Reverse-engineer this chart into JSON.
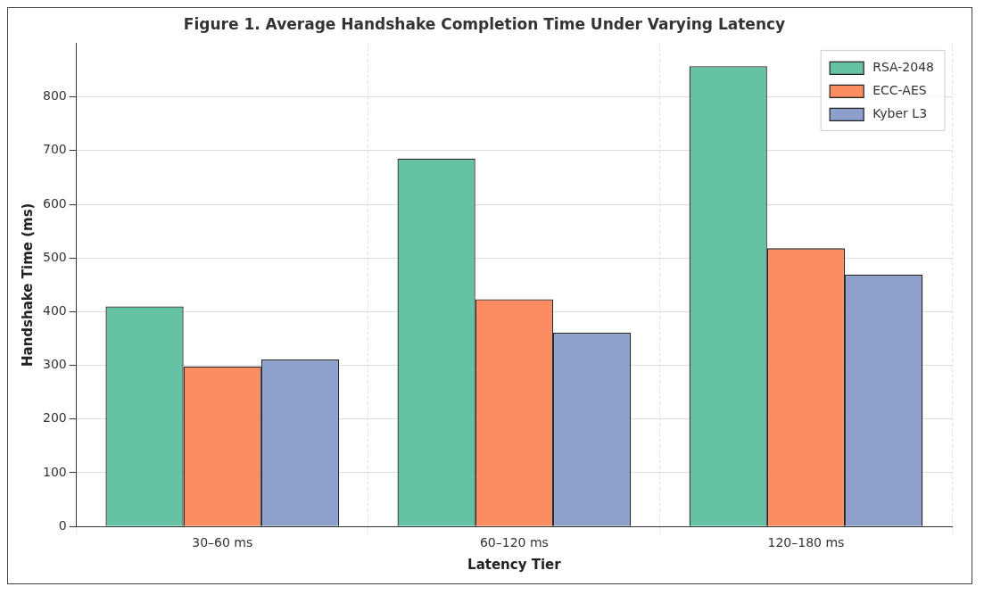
{
  "chart_data": {
    "type": "bar",
    "title": "Figure 1. Average Handshake Completion Time Under Varying Latency",
    "xlabel": "Latency Tier",
    "ylabel": "Handshake Time (ms)",
    "categories": [
      "30–60 ms",
      "60–120 ms",
      "120–180 ms"
    ],
    "series": [
      {
        "name": "RSA-2048",
        "color": "#66c2a5",
        "values": [
          410,
          685,
          857
        ]
      },
      {
        "name": "ECC-AES",
        "color": "#fc8d62",
        "values": [
          298,
          423,
          518
        ]
      },
      {
        "name": "Kyber L3",
        "color": "#8da0cb",
        "values": [
          311,
          361,
          469
        ]
      }
    ],
    "ylim": [
      0,
      900
    ],
    "yticks": [
      0,
      100,
      200,
      300,
      400,
      500,
      600,
      700,
      800
    ],
    "grid": true,
    "legend": "top right"
  }
}
